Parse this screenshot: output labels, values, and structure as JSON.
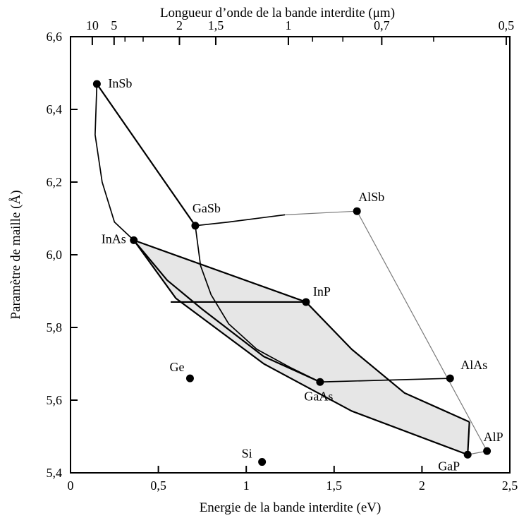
{
  "chart_data": {
    "type": "scatter",
    "title": "",
    "xlabel": "Energie de la bande interdite (eV)",
    "ylabel": "Paramètre de maille (Å)",
    "x2label": "Longueur d’onde de la bande interdite (μm)",
    "xlim": [
      0,
      2.5
    ],
    "ylim": [
      5.4,
      6.6
    ],
    "x_ticks": [
      "0",
      "0,5",
      "1",
      "1,5",
      "2",
      "2,5"
    ],
    "y_ticks": [
      "5,4",
      "5,6",
      "5,8",
      "6,0",
      "6,2",
      "6,4",
      "6,6"
    ],
    "x2_ticks": [
      {
        "label": "10",
        "um": 10
      },
      {
        "label": "5",
        "um": 5
      },
      {
        "label": "2",
        "um": 2
      },
      {
        "label": "1,5",
        "um": 1.5
      },
      {
        "label": "1",
        "um": 1
      },
      {
        "label": "0,7",
        "um": 0.7
      },
      {
        "label": "0,5",
        "um": 0.5
      }
    ],
    "x2_minor_um": [
      4,
      3,
      0.9,
      0.8,
      0.6
    ],
    "grid": false,
    "points": [
      {
        "label": "InSb",
        "x": 0.15,
        "y": 6.47
      },
      {
        "label": "GaSb",
        "x": 0.71,
        "y": 6.08
      },
      {
        "label": "AlSb",
        "x": 1.63,
        "y": 6.12
      },
      {
        "label": "InAs",
        "x": 0.36,
        "y": 6.04
      },
      {
        "label": "InP",
        "x": 1.34,
        "y": 5.87
      },
      {
        "label": "Ge",
        "x": 0.68,
        "y": 5.66
      },
      {
        "label": "GaAs",
        "x": 1.42,
        "y": 5.65
      },
      {
        "label": "AlAs",
        "x": 2.16,
        "y": 5.66
      },
      {
        "label": "Si",
        "x": 1.09,
        "y": 5.43
      },
      {
        "label": "GaP",
        "x": 2.26,
        "y": 5.45
      },
      {
        "label": "AlP",
        "x": 2.37,
        "y": 5.46
      }
    ],
    "curves": [
      {
        "style": "thick",
        "points": [
          [
            0.15,
            6.47
          ],
          [
            0.71,
            6.08
          ]
        ]
      },
      {
        "style": "medium",
        "points": [
          [
            0.71,
            6.08
          ],
          [
            0.9,
            6.09
          ],
          [
            1.22,
            6.11
          ]
        ]
      },
      {
        "style": "thin",
        "points": [
          [
            1.22,
            6.11
          ],
          [
            1.63,
            6.12
          ]
        ]
      },
      {
        "style": "thin",
        "points": [
          [
            1.63,
            6.12
          ],
          [
            2.37,
            5.46
          ]
        ]
      },
      {
        "style": "medium",
        "points": [
          [
            0.15,
            6.47
          ],
          [
            0.14,
            6.33
          ],
          [
            0.18,
            6.2
          ],
          [
            0.25,
            6.09
          ],
          [
            0.36,
            6.04
          ]
        ]
      },
      {
        "style": "medium",
        "points": [
          [
            0.71,
            6.08
          ],
          [
            0.74,
            5.97
          ],
          [
            0.8,
            5.89
          ],
          [
            0.9,
            5.81
          ],
          [
            1.06,
            5.74
          ],
          [
            1.25,
            5.69
          ],
          [
            1.42,
            5.65
          ]
        ]
      },
      {
        "style": "thick",
        "points": [
          [
            0.36,
            6.04
          ],
          [
            1.34,
            5.87
          ]
        ]
      },
      {
        "style": "thick",
        "points": [
          [
            0.36,
            6.04
          ],
          [
            0.55,
            5.93
          ],
          [
            0.75,
            5.85
          ],
          [
            1.1,
            5.72
          ],
          [
            1.42,
            5.65
          ]
        ]
      },
      {
        "style": "thick",
        "points": [
          [
            0.36,
            6.04
          ],
          [
            0.6,
            5.88
          ],
          [
            1.1,
            5.7
          ],
          [
            1.6,
            5.57
          ],
          [
            2.26,
            5.45
          ]
        ]
      },
      {
        "style": "thick",
        "points": [
          [
            0.57,
            5.87
          ],
          [
            1.34,
            5.87
          ]
        ]
      },
      {
        "style": "thick",
        "points": [
          [
            1.34,
            5.87
          ],
          [
            1.6,
            5.74
          ],
          [
            1.9,
            5.62
          ],
          [
            2.27,
            5.54
          ]
        ]
      },
      {
        "style": "thick",
        "points": [
          [
            2.27,
            5.54
          ],
          [
            2.26,
            5.45
          ]
        ]
      },
      {
        "style": "medium",
        "points": [
          [
            1.42,
            5.65
          ],
          [
            2.16,
            5.66
          ]
        ]
      },
      {
        "style": "thin",
        "points": [
          [
            2.26,
            5.45
          ],
          [
            2.37,
            5.46
          ]
        ]
      }
    ],
    "shaded_regions": [
      {
        "fill": "#e6e6e6",
        "points": [
          [
            0.36,
            6.04
          ],
          [
            1.34,
            5.87
          ],
          [
            1.6,
            5.74
          ],
          [
            1.9,
            5.62
          ],
          [
            2.27,
            5.54
          ],
          [
            2.26,
            5.45
          ],
          [
            1.6,
            5.57
          ],
          [
            1.1,
            5.7
          ],
          [
            0.6,
            5.88
          ]
        ]
      }
    ],
    "colors": {
      "line": "#000000",
      "thin_line": "#7a7a7a",
      "shade": "#e6e6e6",
      "marker": "#000000"
    }
  }
}
